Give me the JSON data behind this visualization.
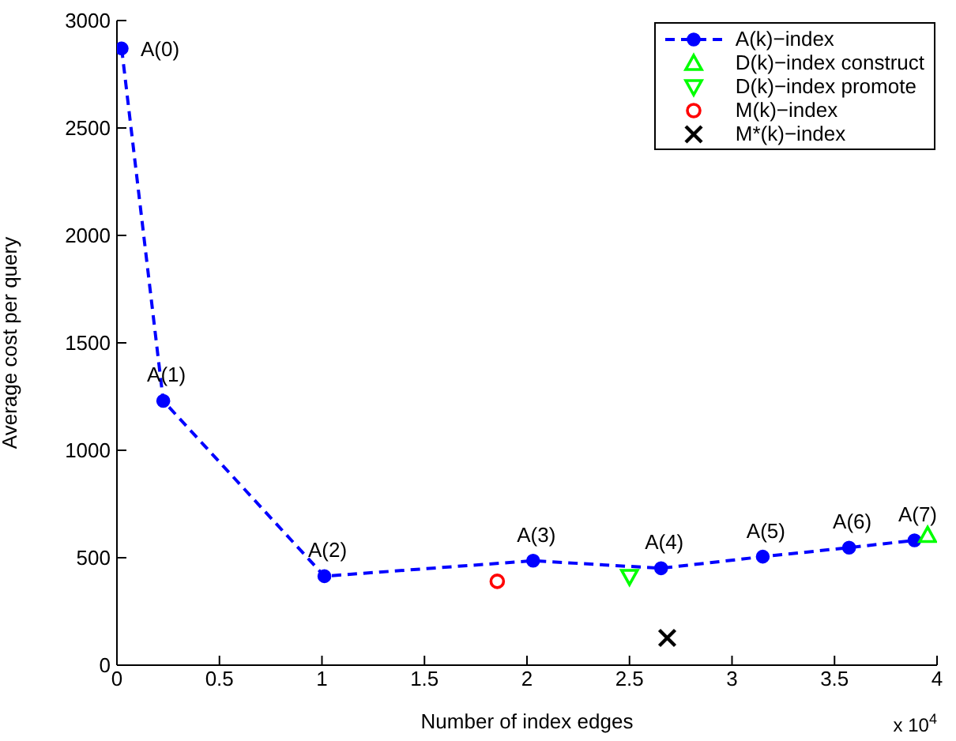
{
  "chart_data": {
    "type": "line",
    "xlabel": "Number of index edges",
    "ylabel": "Average cost per query",
    "xlim": [
      0,
      4
    ],
    "xticks": [
      0,
      0.5,
      1,
      1.5,
      2,
      2.5,
      3,
      3.5,
      4
    ],
    "ylim": [
      0,
      3000
    ],
    "yticks": [
      0,
      500,
      1000,
      1500,
      2000,
      2500,
      3000
    ],
    "grid": false,
    "legend": "top right",
    "series": [
      {
        "name": "A(k)−index",
        "color": "#0000ff",
        "marker": "circle",
        "line_style": "dashed",
        "x": [
          0.023,
          0.226,
          1.012,
          2.03,
          2.654,
          3.15,
          3.571,
          3.89
        ],
        "values": [
          2870,
          1230,
          414,
          486,
          451,
          505,
          547,
          581
        ]
      },
      {
        "name": "D(k)−index construct",
        "type": "scatter",
        "color": "#00ff00",
        "marker": "triangle",
        "x": [
          3.954
        ],
        "values": [
          605
        ]
      },
      {
        "name": "D(k)−index promote",
        "type": "scatter",
        "color": "#00ff00",
        "marker": "triangle_down",
        "x": [
          2.5
        ],
        "values": [
          412
        ]
      },
      {
        "name": "M(k)−index",
        "type": "scatter",
        "color": "#ff0000",
        "marker": "circle",
        "x": [
          1.855
        ],
        "values": [
          390
        ]
      },
      {
        "name": "M*(k)−index",
        "type": "scatter",
        "color": "#000000",
        "marker": "cross",
        "x": [
          2.684
        ],
        "values": [
          127
        ]
      }
    ],
    "annotations": [
      {
        "text": "A(0)",
        "x": 0.023,
        "y": 2870
      },
      {
        "text": "A(1)",
        "x": 0.226,
        "y": 1230
      },
      {
        "text": "A(2)",
        "x": 1.012,
        "y": 414
      },
      {
        "text": "A(3)",
        "x": 2.03,
        "y": 486
      },
      {
        "text": "A(4)",
        "x": 2.654,
        "y": 451
      },
      {
        "text": "A(5)",
        "x": 3.15,
        "y": 505
      },
      {
        "text": "A(6)",
        "x": 3.571,
        "y": 547
      },
      {
        "text": "A(7)",
        "x": 3.89,
        "y": 581
      },
      "x 10$^{4}$"
    ]
  }
}
